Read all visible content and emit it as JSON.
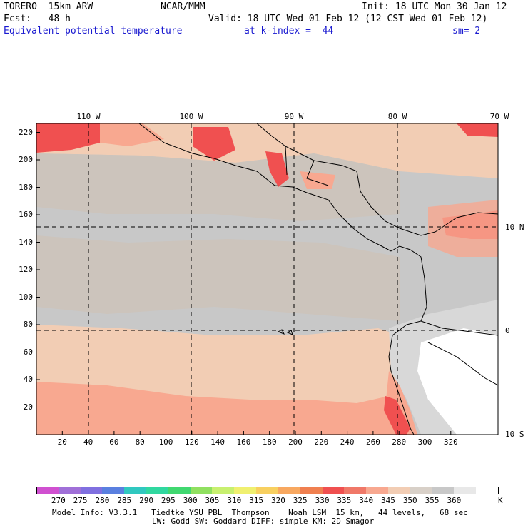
{
  "header": {
    "model": "TORERO  15km ARW",
    "org": "NCAR/MMM",
    "init": "Init: 18 UTC Mon 30 Jan 12",
    "fcst": "Fcst:   48 h",
    "valid": "Valid: 18 UTC Wed 01 Feb 12 (12 CST Wed 01 Feb 12)",
    "field": "Equivalent potential temperature",
    "level": "at k-index =  44",
    "smooth": "sm= 2"
  },
  "map": {
    "lon_labels": [
      "110 W",
      "100 W",
      "90 W",
      "80 W",
      "70 W"
    ],
    "lat_labels": [
      "10 N",
      "0",
      "10 S"
    ],
    "y_ticks": [
      20,
      40,
      60,
      80,
      100,
      120,
      140,
      160,
      180,
      200,
      220
    ],
    "x_ticks": [
      20,
      40,
      60,
      80,
      100,
      120,
      140,
      160,
      180,
      200,
      220,
      240,
      260,
      280,
      300,
      320
    ],
    "gridlines": "dashed",
    "field_range_description_colors": {
      "sea_west": "#c8c8c8",
      "mid_band": "#ccc4bc",
      "tan": "#f2cdb4",
      "salmon": "#f8a890",
      "red": "#f05050",
      "land_light": "#e6e6e6",
      "land_white": "#ffffff"
    }
  },
  "colorbar": {
    "labels": [
      "270",
      "275",
      "280",
      "285",
      "290",
      "295",
      "300",
      "305",
      "310",
      "315",
      "320",
      "325",
      "330",
      "335",
      "340",
      "345",
      "350",
      "355",
      "360"
    ],
    "unit": "K",
    "colors": [
      "#d050d0",
      "#a070d8",
      "#8070e0",
      "#5a80e0",
      "#30c8c0",
      "#30d8a0",
      "#40d870",
      "#90e060",
      "#c8f070",
      "#f0f070",
      "#f8d060",
      "#f8a860",
      "#f08050",
      "#f05050",
      "#f07868",
      "#f8a890",
      "#f2cdb4",
      "#d8d0c8",
      "#c8c8c8",
      "#e8e8e8",
      "#ffffff"
    ]
  },
  "footer": {
    "line1": "Model Info: V3.3.1   Tiedtke YSU PBL  Thompson    Noah LSM  15 km,   44 levels,   68 sec",
    "line2": "LW: Godd SW: Goddard DIFF: simple KM: 2D Smagor"
  }
}
